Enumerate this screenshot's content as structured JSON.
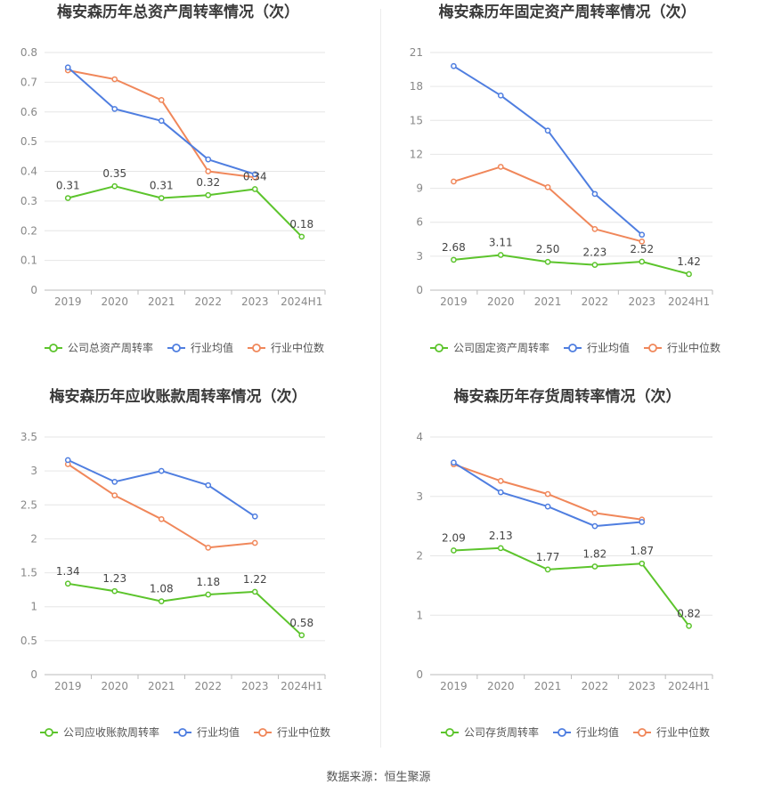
{
  "source_text": "数据来源：恒生聚源",
  "colors": {
    "company": "#5cc42c",
    "avg": "#4f7ee0",
    "median": "#f0875a"
  },
  "categories": [
    "2019",
    "2020",
    "2021",
    "2022",
    "2023",
    "2024H1"
  ],
  "chart_data": [
    {
      "type": "line",
      "title": "梅安森历年总资产周转率情况（次）",
      "categories": [
        "2019",
        "2020",
        "2021",
        "2022",
        "2023",
        "2024H1"
      ],
      "ylim": [
        0,
        0.8
      ],
      "yticks": [
        0,
        0.1,
        0.2,
        0.3,
        0.4,
        0.5,
        0.6,
        0.7,
        0.8
      ],
      "ytick_labels": [
        "0",
        "0.1",
        "0.2",
        "0.3",
        "0.4",
        "0.5",
        "0.6",
        "0.7",
        "0.8"
      ],
      "series": [
        {
          "name": "公司总资产周转率",
          "values": [
            0.31,
            0.35,
            0.31,
            0.32,
            0.34,
            0.18
          ],
          "labels": [
            "0.31",
            "0.35",
            "0.31",
            "0.32",
            "0.34",
            "0.18"
          ]
        },
        {
          "name": "行业均值",
          "values": [
            0.75,
            0.61,
            0.57,
            0.44,
            0.39,
            null
          ]
        },
        {
          "name": "行业中位数",
          "values": [
            0.74,
            0.71,
            0.64,
            0.4,
            0.38,
            null
          ]
        }
      ]
    },
    {
      "type": "line",
      "title": "梅安森历年固定资产周转率情况（次）",
      "categories": [
        "2019",
        "2020",
        "2021",
        "2022",
        "2023",
        "2024H1"
      ],
      "ylim": [
        0,
        21
      ],
      "yticks": [
        0,
        3,
        6,
        9,
        12,
        15,
        18,
        21
      ],
      "ytick_labels": [
        "0",
        "3",
        "6",
        "9",
        "12",
        "15",
        "18",
        "21"
      ],
      "series": [
        {
          "name": "公司固定资产周转率",
          "values": [
            2.68,
            3.11,
            2.5,
            2.23,
            2.52,
            1.42
          ],
          "labels": [
            "2.68",
            "3.11",
            "2.50",
            "2.23",
            "2.52",
            "1.42"
          ]
        },
        {
          "name": "行业均值",
          "values": [
            19.8,
            17.2,
            14.1,
            8.5,
            4.9,
            null
          ]
        },
        {
          "name": "行业中位数",
          "values": [
            9.6,
            10.9,
            9.1,
            5.4,
            4.3,
            null
          ]
        }
      ]
    },
    {
      "type": "line",
      "title": "梅安森历年应收账款周转率情况（次）",
      "categories": [
        "2019",
        "2020",
        "2021",
        "2022",
        "2023",
        "2024H1"
      ],
      "ylim": [
        0,
        3.5
      ],
      "yticks": [
        0,
        0.5,
        1,
        1.5,
        2,
        2.5,
        3,
        3.5
      ],
      "ytick_labels": [
        "0",
        "0.5",
        "1",
        "1.5",
        "2",
        "2.5",
        "3",
        "3.5"
      ],
      "series": [
        {
          "name": "公司应收账款周转率",
          "values": [
            1.34,
            1.23,
            1.08,
            1.18,
            1.22,
            0.58
          ],
          "labels": [
            "1.34",
            "1.23",
            "1.08",
            "1.18",
            "1.22",
            "0.58"
          ]
        },
        {
          "name": "行业均值",
          "values": [
            3.16,
            2.84,
            3.0,
            2.79,
            2.33,
            null
          ]
        },
        {
          "name": "行业中位数",
          "values": [
            3.1,
            2.64,
            2.29,
            1.87,
            1.94,
            null
          ]
        }
      ]
    },
    {
      "type": "line",
      "title": "梅安森历年存货周转率情况（次）",
      "categories": [
        "2019",
        "2020",
        "2021",
        "2022",
        "2023",
        "2024H1"
      ],
      "ylim": [
        0,
        4
      ],
      "yticks": [
        0,
        1,
        2,
        3,
        4
      ],
      "ytick_labels": [
        "0",
        "1",
        "2",
        "3",
        "4"
      ],
      "series": [
        {
          "name": "公司存货周转率",
          "values": [
            2.09,
            2.13,
            1.77,
            1.82,
            1.87,
            0.82
          ],
          "labels": [
            "2.09",
            "2.13",
            "1.77",
            "1.82",
            "1.87",
            "0.82"
          ]
        },
        {
          "name": "行业均值",
          "values": [
            3.57,
            3.07,
            2.83,
            2.5,
            2.57,
            null
          ]
        },
        {
          "name": "行业中位数",
          "values": [
            3.54,
            3.26,
            3.04,
            2.72,
            2.61,
            null
          ]
        }
      ]
    }
  ]
}
